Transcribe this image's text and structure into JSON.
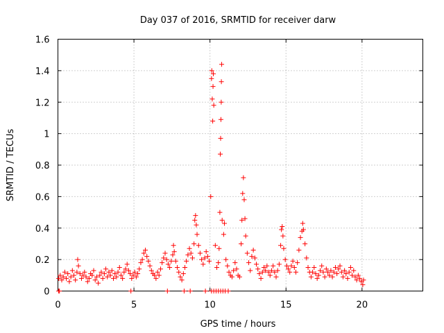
{
  "chart_data": {
    "type": "scatter",
    "title": "Day 037 of 2016, SRMTID for receiver darw",
    "xlabel": "GPS time / hours",
    "ylabel": "SRMTID / TECUs",
    "xlim": [
      0,
      24
    ],
    "ylim": [
      0,
      1.6
    ],
    "xticks": [
      0,
      5,
      10,
      15,
      20
    ],
    "yticks": [
      0,
      0.2,
      0.4,
      0.6,
      0.8,
      1,
      1.2,
      1.4,
      1.6
    ],
    "xtick_labels": [
      "0",
      "5",
      "10",
      "15",
      "20"
    ],
    "ytick_labels": [
      "0",
      "0.2",
      "0.4",
      "0.6",
      "0.8",
      "1",
      "1.2",
      "1.4",
      "1.6"
    ],
    "grid": true,
    "marker": "+",
    "color": "#ff0000",
    "series": [
      {
        "name": "SRMTID",
        "points": [
          [
            0.05,
            0.08
          ],
          [
            0.15,
            0.1
          ],
          [
            0.25,
            0.07
          ],
          [
            0.35,
            0.09
          ],
          [
            0.45,
            0.12
          ],
          [
            0.55,
            0.08
          ],
          [
            0.65,
            0.11
          ],
          [
            0.75,
            0.06
          ],
          [
            0.85,
            0.09
          ],
          [
            0.95,
            0.13
          ],
          [
            1.05,
            0.1
          ],
          [
            1.15,
            0.07
          ],
          [
            1.25,
            0.12
          ],
          [
            1.3,
            0.2
          ],
          [
            1.35,
            0.16
          ],
          [
            1.45,
            0.11
          ],
          [
            1.55,
            0.08
          ],
          [
            1.65,
            0.1
          ],
          [
            1.75,
            0.12
          ],
          [
            1.85,
            0.09
          ],
          [
            1.95,
            0.06
          ],
          [
            2.05,
            0.08
          ],
          [
            2.15,
            0.11
          ],
          [
            2.25,
            0.1
          ],
          [
            2.35,
            0.13
          ],
          [
            2.45,
            0.07
          ],
          [
            2.55,
            0.09
          ],
          [
            2.65,
            0.05
          ],
          [
            2.75,
            0.1
          ],
          [
            2.85,
            0.12
          ],
          [
            2.95,
            0.08
          ],
          [
            3.05,
            0.11
          ],
          [
            3.15,
            0.14
          ],
          [
            3.25,
            0.09
          ],
          [
            3.35,
            0.12
          ],
          [
            3.45,
            0.1
          ],
          [
            3.55,
            0.13
          ],
          [
            3.65,
            0.08
          ],
          [
            3.75,
            0.11
          ],
          [
            3.85,
            0.09
          ],
          [
            3.95,
            0.12
          ],
          [
            4.05,
            0.15
          ],
          [
            4.15,
            0.1
          ],
          [
            4.25,
            0.08
          ],
          [
            4.35,
            0.12
          ],
          [
            4.45,
            0.14
          ],
          [
            4.55,
            0.17
          ],
          [
            4.65,
            0.13
          ],
          [
            4.75,
            0.11
          ],
          [
            4.85,
            0.08
          ],
          [
            4.95,
            0.1
          ],
          [
            5.05,
            0.12
          ],
          [
            5.15,
            0.09
          ],
          [
            5.25,
            0.11
          ],
          [
            5.35,
            0.14
          ],
          [
            5.45,
            0.18
          ],
          [
            5.55,
            0.2
          ],
          [
            5.65,
            0.24
          ],
          [
            5.75,
            0.26
          ],
          [
            5.85,
            0.22
          ],
          [
            5.95,
            0.19
          ],
          [
            6.05,
            0.16
          ],
          [
            6.15,
            0.13
          ],
          [
            6.25,
            0.11
          ],
          [
            6.35,
            0.1
          ],
          [
            6.45,
            0.08
          ],
          [
            6.55,
            0.12
          ],
          [
            6.65,
            0.1
          ],
          [
            6.75,
            0.14
          ],
          [
            6.85,
            0.18
          ],
          [
            6.95,
            0.21
          ],
          [
            7.05,
            0.24
          ],
          [
            7.15,
            0.2
          ],
          [
            7.25,
            0.17
          ],
          [
            7.35,
            0.15
          ],
          [
            7.45,
            0.19
          ],
          [
            7.55,
            0.23
          ],
          [
            7.6,
            0.29
          ],
          [
            7.65,
            0.25
          ],
          [
            7.75,
            0.19
          ],
          [
            7.85,
            0.15
          ],
          [
            7.95,
            0.12
          ],
          [
            8.05,
            0.09
          ],
          [
            8.15,
            0.07
          ],
          [
            8.25,
            0.11
          ],
          [
            8.35,
            0.15
          ],
          [
            8.45,
            0.19
          ],
          [
            8.55,
            0.23
          ],
          [
            8.65,
            0.27
          ],
          [
            8.75,
            0.24
          ],
          [
            8.85,
            0.21
          ],
          [
            8.95,
            0.3
          ],
          [
            9.0,
            0.45
          ],
          [
            9.05,
            0.48
          ],
          [
            9.1,
            0.42
          ],
          [
            9.15,
            0.36
          ],
          [
            9.25,
            0.29
          ],
          [
            9.35,
            0.24
          ],
          [
            9.45,
            0.2
          ],
          [
            9.55,
            0.17
          ],
          [
            9.65,
            0.21
          ],
          [
            9.75,
            0.25
          ],
          [
            9.85,
            0.22
          ],
          [
            9.95,
            0.19
          ],
          [
            10.05,
            0.6
          ],
          [
            10.1,
            1.35
          ],
          [
            10.12,
            1.4
          ],
          [
            10.15,
            1.22
          ],
          [
            10.18,
            1.08
          ],
          [
            10.2,
            1.3
          ],
          [
            10.22,
            1.38
          ],
          [
            10.25,
            1.18
          ],
          [
            10.35,
            0.29
          ],
          [
            10.45,
            0.15
          ],
          [
            10.55,
            0.18
          ],
          [
            10.6,
            0.27
          ],
          [
            10.65,
            0.5
          ],
          [
            10.68,
            0.87
          ],
          [
            10.7,
            0.97
          ],
          [
            10.72,
            1.09
          ],
          [
            10.74,
            1.2
          ],
          [
            10.75,
            1.33
          ],
          [
            10.77,
            1.44
          ],
          [
            10.8,
            0.45
          ],
          [
            10.9,
            0.36
          ],
          [
            10.95,
            0.43
          ],
          [
            11.05,
            0.2
          ],
          [
            11.15,
            0.16
          ],
          [
            11.25,
            0.12
          ],
          [
            11.35,
            0.1
          ],
          [
            11.45,
            0.09
          ],
          [
            11.55,
            0.13
          ],
          [
            11.65,
            0.18
          ],
          [
            11.75,
            0.14
          ],
          [
            11.85,
            0.1
          ],
          [
            11.95,
            0.09
          ],
          [
            12.05,
            0.3
          ],
          [
            12.1,
            0.45
          ],
          [
            12.15,
            0.62
          ],
          [
            12.2,
            0.72
          ],
          [
            12.25,
            0.58
          ],
          [
            12.3,
            0.46
          ],
          [
            12.35,
            0.35
          ],
          [
            12.45,
            0.24
          ],
          [
            12.55,
            0.18
          ],
          [
            12.65,
            0.13
          ],
          [
            12.75,
            0.22
          ],
          [
            12.85,
            0.26
          ],
          [
            12.95,
            0.21
          ],
          [
            13.05,
            0.17
          ],
          [
            13.15,
            0.14
          ],
          [
            13.25,
            0.11
          ],
          [
            13.35,
            0.08
          ],
          [
            13.45,
            0.12
          ],
          [
            13.55,
            0.15
          ],
          [
            13.65,
            0.13
          ],
          [
            13.75,
            0.16
          ],
          [
            13.85,
            0.12
          ],
          [
            13.95,
            0.1
          ],
          [
            14.05,
            0.13
          ],
          [
            14.15,
            0.16
          ],
          [
            14.25,
            0.12
          ],
          [
            14.35,
            0.09
          ],
          [
            14.45,
            0.13
          ],
          [
            14.55,
            0.17
          ],
          [
            14.65,
            0.29
          ],
          [
            14.7,
            0.39
          ],
          [
            14.75,
            0.41
          ],
          [
            14.8,
            0.35
          ],
          [
            14.85,
            0.27
          ],
          [
            14.95,
            0.2
          ],
          [
            15.05,
            0.16
          ],
          [
            15.15,
            0.14
          ],
          [
            15.25,
            0.12
          ],
          [
            15.35,
            0.16
          ],
          [
            15.45,
            0.19
          ],
          [
            15.55,
            0.15
          ],
          [
            15.65,
            0.12
          ],
          [
            15.75,
            0.18
          ],
          [
            15.85,
            0.26
          ],
          [
            15.95,
            0.34
          ],
          [
            16.05,
            0.38
          ],
          [
            16.1,
            0.43
          ],
          [
            16.15,
            0.39
          ],
          [
            16.25,
            0.3
          ],
          [
            16.35,
            0.21
          ],
          [
            16.45,
            0.15
          ],
          [
            16.55,
            0.12
          ],
          [
            16.65,
            0.09
          ],
          [
            16.75,
            0.12
          ],
          [
            16.85,
            0.15
          ],
          [
            16.95,
            0.11
          ],
          [
            17.05,
            0.08
          ],
          [
            17.15,
            0.1
          ],
          [
            17.25,
            0.13
          ],
          [
            17.35,
            0.16
          ],
          [
            17.45,
            0.12
          ],
          [
            17.55,
            0.09
          ],
          [
            17.65,
            0.14
          ],
          [
            17.75,
            0.12
          ],
          [
            17.85,
            0.1
          ],
          [
            17.95,
            0.13
          ],
          [
            18.05,
            0.09
          ],
          [
            18.15,
            0.12
          ],
          [
            18.25,
            0.15
          ],
          [
            18.35,
            0.11
          ],
          [
            18.45,
            0.14
          ],
          [
            18.55,
            0.16
          ],
          [
            18.65,
            0.12
          ],
          [
            18.75,
            0.09
          ],
          [
            18.85,
            0.13
          ],
          [
            18.95,
            0.11
          ],
          [
            19.05,
            0.08
          ],
          [
            19.15,
            0.12
          ],
          [
            19.25,
            0.15
          ],
          [
            19.35,
            0.1
          ],
          [
            19.45,
            0.13
          ],
          [
            19.55,
            0.09
          ],
          [
            19.65,
            0.07
          ],
          [
            19.75,
            0.1
          ],
          [
            19.85,
            0.08
          ],
          [
            19.95,
            0.06
          ],
          [
            20.05,
            0.04
          ],
          [
            20.1,
            0.07
          ],
          [
            0.05,
            0.0
          ],
          [
            0.1,
            0.0
          ],
          [
            4.8,
            0.0
          ],
          [
            7.2,
            0.0
          ],
          [
            8.3,
            0.0
          ],
          [
            8.7,
            0.0
          ],
          [
            9.7,
            0.0
          ],
          [
            10.1,
            0.0
          ],
          [
            10.25,
            0.0
          ],
          [
            10.4,
            0.0
          ],
          [
            10.55,
            0.0
          ],
          [
            10.7,
            0.0
          ],
          [
            10.85,
            0.0
          ],
          [
            11.0,
            0.0
          ],
          [
            11.2,
            0.0
          ]
        ]
      }
    ]
  }
}
